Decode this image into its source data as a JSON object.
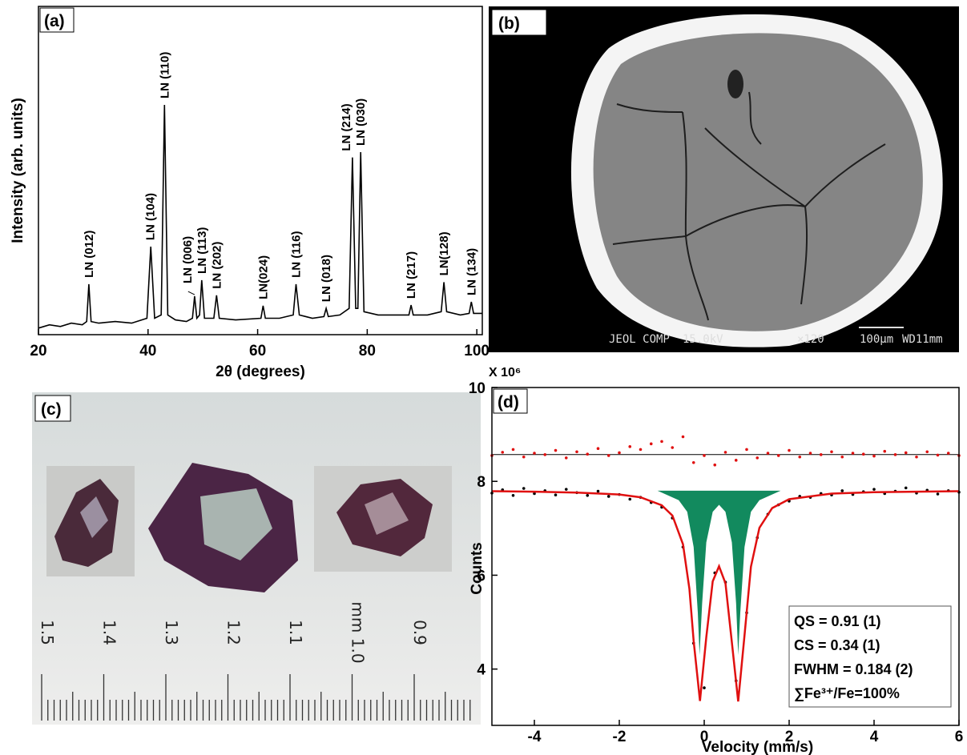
{
  "chart_data": [
    {
      "type": "line",
      "label": "(a)",
      "xlabel": "2θ (degrees)",
      "ylabel": "Intensity (arb. units)",
      "xlim": [
        20,
        101
      ],
      "xticks": [
        20,
        40,
        60,
        80,
        100
      ],
      "ylim": [
        0,
        100
      ],
      "color": "#000000",
      "x": [
        20,
        22,
        24,
        26,
        28,
        28.8,
        29.2,
        29.6,
        31,
        34,
        37,
        39.8,
        40.5,
        41.2,
        42.4,
        43,
        43.6,
        45,
        47,
        48.1,
        48.5,
        48.9,
        49.4,
        49.8,
        50.3,
        52,
        52.5,
        53,
        56,
        60.6,
        61,
        61.4,
        64,
        66.5,
        67,
        67.6,
        70,
        72.1,
        72.5,
        72.9,
        75,
        76.7,
        77.3,
        77.9,
        78.3,
        78.8,
        79.4,
        82,
        85,
        87.6,
        88,
        88.4,
        91,
        93.5,
        94,
        94.5,
        97,
        98.6,
        99,
        99.4,
        101
      ],
      "values": [
        2,
        3,
        2.5,
        3.5,
        3,
        4,
        15.4,
        4,
        3.5,
        4,
        3.5,
        5,
        26.8,
        5,
        6,
        70,
        6,
        4.5,
        4,
        5,
        11.7,
        5,
        6,
        16.6,
        5,
        5,
        12,
        5,
        4.5,
        5,
        8.8,
        5,
        5,
        6,
        15.4,
        6,
        5,
        5.5,
        8,
        5.5,
        6,
        8,
        54,
        8,
        8,
        55.6,
        7,
        6,
        6,
        6,
        9,
        6,
        6,
        7,
        16,
        7,
        6,
        6.5,
        10,
        6.5,
        6.5
      ],
      "annotations": [
        {
          "text": "LN (012)",
          "x": 29.2,
          "y": 15.4
        },
        {
          "text": "LN (104)",
          "x": 40.5,
          "y": 26.8
        },
        {
          "text": "LN (110)",
          "x": 43,
          "y": 70
        },
        {
          "text": "LN (006)",
          "x": 48.5,
          "y": 11.7
        },
        {
          "text": "LN (113)",
          "x": 49.8,
          "y": 16.6
        },
        {
          "text": "LN (202)",
          "x": 52.5,
          "y": 12
        },
        {
          "text": "LN(024)",
          "x": 61,
          "y": 8.8
        },
        {
          "text": "LN (116)",
          "x": 67,
          "y": 15.4
        },
        {
          "text": "LN (018)",
          "x": 72.5,
          "y": 8
        },
        {
          "text": "LN (214)",
          "x": 77.3,
          "y": 54
        },
        {
          "text": "LN (030)",
          "x": 78.8,
          "y": 55.6
        },
        {
          "text": "LN (217)",
          "x": 88,
          "y": 9
        },
        {
          "text": "LN(128)",
          "x": 94,
          "y": 16
        },
        {
          "text": "LN (134)",
          "x": 99,
          "y": 10
        }
      ]
    },
    {
      "type": "mossbauer",
      "label": "(d)",
      "xlabel": "Velocity (mm/s)",
      "ylabel": "Counts",
      "y_multiplier": "X 10⁶",
      "xlim": [
        -5,
        6
      ],
      "xticks": [
        -4,
        -2,
        0,
        2,
        4,
        6
      ],
      "ylim": [
        2.8,
        10
      ],
      "yticks": [
        4,
        6,
        8,
        10
      ],
      "series": [
        {
          "kind": "area",
          "color": "#128a5e",
          "x": [
            -1.1,
            -0.6,
            -0.4,
            -0.25,
            -0.15,
            -0.11,
            -0.05,
            0.05,
            0.2,
            0.35,
            0.5,
            0.65,
            0.75,
            0.8,
            0.85,
            0.95,
            1.1,
            1.3,
            1.8
          ],
          "values": [
            7.8,
            7.6,
            7.35,
            6.6,
            5.2,
            4.3,
            5.4,
            6.7,
            7.35,
            7.5,
            7.35,
            6.7,
            5.4,
            4.3,
            5.2,
            6.6,
            7.35,
            7.6,
            7.8
          ]
        },
        {
          "kind": "line",
          "color": "#000000",
          "x": [
            -5,
            6
          ],
          "values": [
            8.57,
            8.57
          ]
        },
        {
          "kind": "points",
          "color": "#e01010",
          "x": [
            -5,
            -4.75,
            -4.5,
            -4.25,
            -4,
            -3.75,
            -3.5,
            -3.25,
            -3,
            -2.75,
            -2.5,
            -2.25,
            -2,
            -1.75,
            -1.5,
            -1.25,
            -1,
            -0.75,
            -0.5,
            -0.25,
            0,
            0.25,
            0.5,
            0.75,
            1,
            1.25,
            1.5,
            1.75,
            2,
            2.25,
            2.5,
            2.75,
            3,
            3.25,
            3.5,
            3.75,
            4,
            4.25,
            4.5,
            4.75,
            5,
            5.25,
            5.5,
            5.75,
            6
          ],
          "values": [
            8.55,
            8.62,
            8.68,
            8.52,
            8.6,
            8.57,
            8.66,
            8.5,
            8.63,
            8.58,
            8.7,
            8.55,
            8.61,
            8.74,
            8.68,
            8.8,
            8.85,
            8.72,
            8.95,
            8.4,
            8.55,
            8.35,
            8.62,
            8.45,
            8.68,
            8.5,
            8.6,
            8.55,
            8.66,
            8.52,
            8.6,
            8.57,
            8.63,
            8.52,
            8.6,
            8.58,
            8.54,
            8.64,
            8.57,
            8.61,
            8.52,
            8.63,
            8.56,
            8.6,
            8.55
          ]
        },
        {
          "kind": "points",
          "color": "#000000",
          "x": [
            -5,
            -4.75,
            -4.5,
            -4.25,
            -4,
            -3.75,
            -3.5,
            -3.25,
            -3,
            -2.75,
            -2.5,
            -2.25,
            -2,
            -1.75,
            -1.5,
            -1.25,
            -1,
            -0.75,
            -0.5,
            -0.25,
            0,
            0.25,
            0.5,
            0.75,
            1,
            1.25,
            1.5,
            1.75,
            2,
            2.25,
            2.5,
            2.75,
            3,
            3.25,
            3.5,
            3.75,
            4,
            4.25,
            4.5,
            4.75,
            5,
            5.25,
            5.5,
            5.75,
            6
          ],
          "values": [
            7.75,
            7.82,
            7.7,
            7.85,
            7.74,
            7.8,
            7.71,
            7.83,
            7.76,
            7.7,
            7.79,
            7.68,
            7.72,
            7.62,
            7.66,
            7.55,
            7.45,
            7.22,
            6.6,
            4.55,
            3.6,
            6.05,
            5.85,
            3.75,
            5.2,
            6.8,
            7.3,
            7.5,
            7.58,
            7.68,
            7.66,
            7.74,
            7.71,
            7.8,
            7.72,
            7.78,
            7.83,
            7.74,
            7.79,
            7.86,
            7.75,
            7.81,
            7.73,
            7.8,
            7.77
          ]
        },
        {
          "kind": "line",
          "color": "#e01010",
          "x": [
            -5,
            -4,
            -3,
            -2,
            -1.5,
            -1,
            -0.75,
            -0.5,
            -0.35,
            -0.25,
            -0.1,
            0.05,
            0.2,
            0.35,
            0.5,
            0.65,
            0.8,
            0.95,
            1.1,
            1.3,
            1.6,
            2,
            3,
            4,
            5,
            6
          ],
          "values": [
            7.79,
            7.78,
            7.76,
            7.72,
            7.66,
            7.49,
            7.27,
            6.66,
            5.71,
            4.6,
            3.32,
            4.68,
            5.87,
            6.19,
            5.83,
            4.57,
            3.31,
            4.72,
            6.18,
            7.01,
            7.43,
            7.62,
            7.74,
            7.77,
            7.78,
            7.79
          ]
        }
      ],
      "textbox": [
        "QS = 0.91 (1)",
        "CS = 0.34 (1)",
        "FWHM = 0.184 (2)",
        "∑Fe³⁺/Fe=100%"
      ]
    }
  ],
  "panels": {
    "b": {
      "label": "(b)",
      "caption": [
        "JEOL COMP",
        "15.0kV",
        "×120",
        "100μm",
        "WD11mm"
      ]
    },
    "c": {
      "label": "(c)",
      "ruler_labels": [
        "1.5",
        "1.4",
        "1.3",
        "1.2",
        "1.1",
        "mm 1.0",
        "0.9"
      ]
    }
  }
}
